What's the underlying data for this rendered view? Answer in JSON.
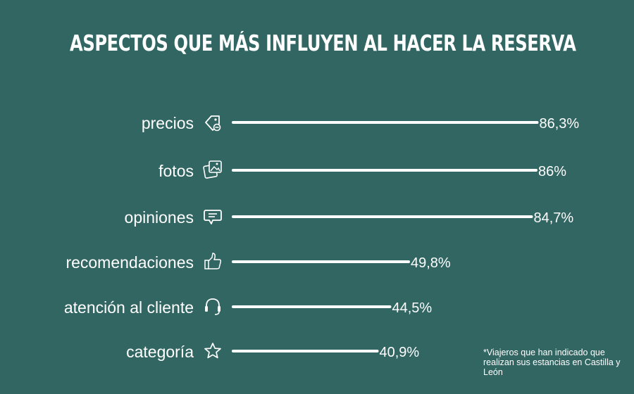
{
  "chart_data": {
    "type": "bar",
    "title": "ASPECTOS QUE MÁS INFLUYEN AL HACER LA RESERVA",
    "categories": [
      "precios",
      "fotos",
      "opiniones",
      "recomendaciones",
      "atención al cliente",
      "categoría"
    ],
    "icons": [
      "price-tag-icon",
      "photos-icon",
      "speech-bubble-icon",
      "thumbs-up-icon",
      "headset-icon",
      "star-icon"
    ],
    "values": [
      86.3,
      86,
      84.7,
      49.8,
      44.5,
      40.9
    ],
    "value_labels": [
      "86,3%",
      "86%",
      "84,7%",
      "49,8%",
      "44,5%",
      "40,9%"
    ],
    "orientation": "horizontal",
    "xlim": [
      0,
      100
    ],
    "colors": {
      "background": "#316663",
      "bar": "#ffffff",
      "text": "#ffffff"
    }
  },
  "footnote": "*Viajeros que han indicado que realizan sus estancias en Castilla y León"
}
